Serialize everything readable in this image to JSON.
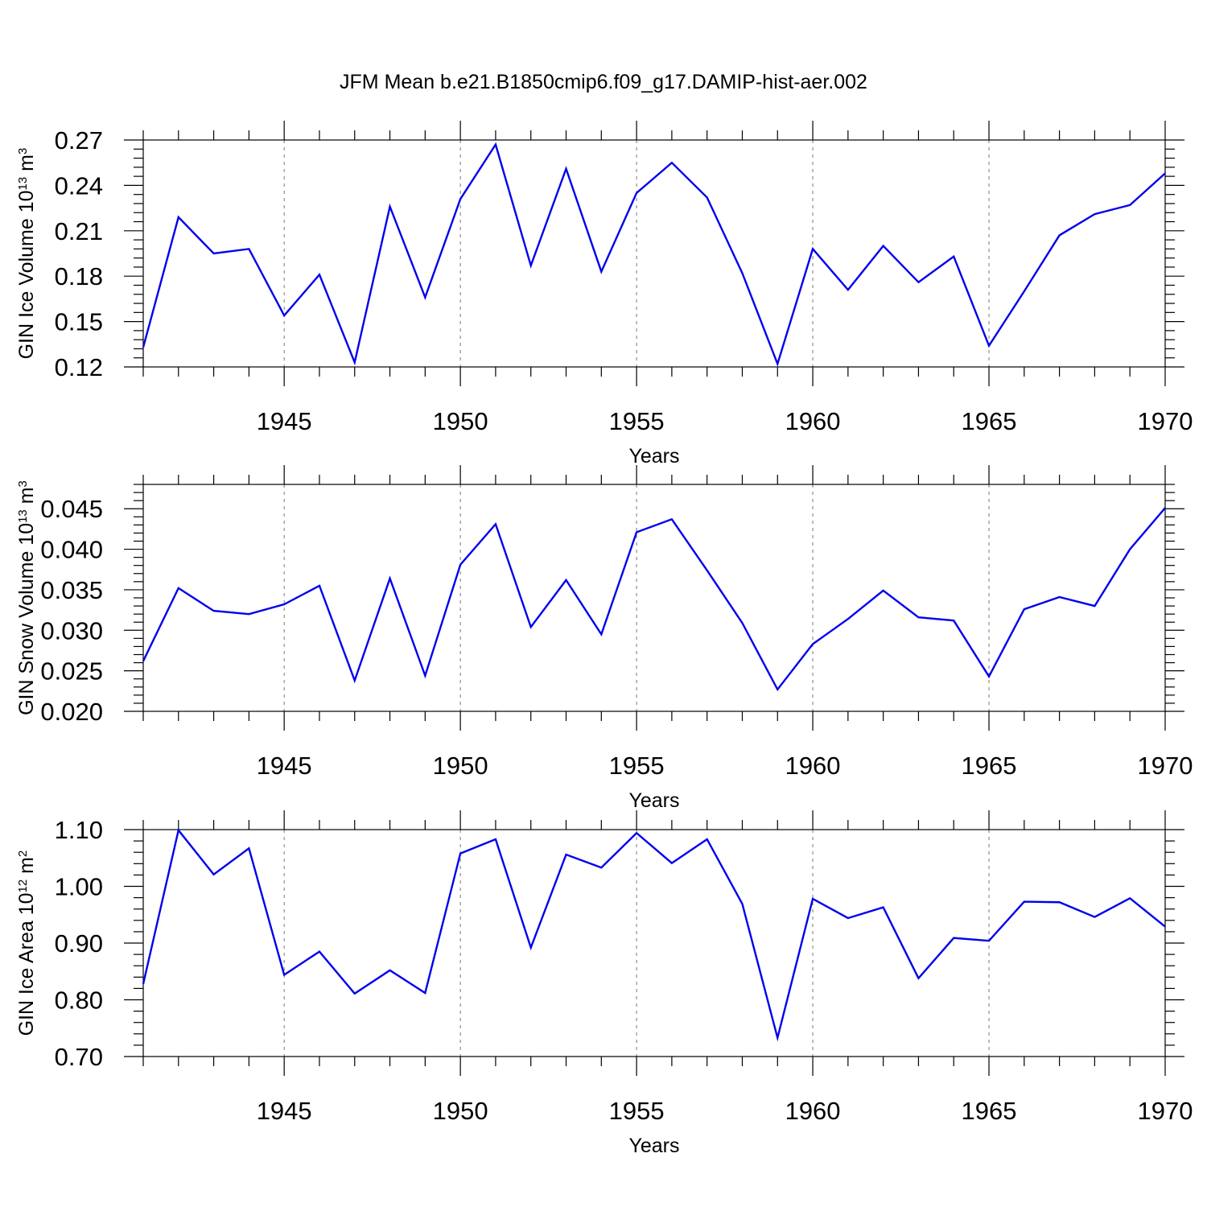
{
  "figure": {
    "title": "JFM Mean b.e21.B1850cmip6.f09_g17.DAMIP-hist-aer.002"
  },
  "chart_data": [
    {
      "type": "line",
      "ylabel": "GIN Ice Volume 10",
      "ylabel_exp": "13",
      "ylabel_unit": " m",
      "ylabel_unit_exp": "3",
      "xlabel": "Years",
      "xlim": [
        1941,
        1970
      ],
      "ylim": [
        0.12,
        0.27
      ],
      "yticks": [
        0.12,
        0.15,
        0.18,
        0.21,
        0.24,
        0.27
      ],
      "ytick_labels": [
        "0.12",
        "0.15",
        "0.18",
        "0.21",
        "0.24",
        "0.27"
      ],
      "xticks": [
        1945,
        1950,
        1955,
        1960,
        1965,
        1970
      ],
      "xtick_labels": [
        "1945",
        "1950",
        "1955",
        "1960",
        "1965",
        "1970"
      ],
      "grid": "vertical dashed at major x ticks",
      "color": "#0000ee",
      "x": [
        1941,
        1942,
        1943,
        1944,
        1945,
        1946,
        1947,
        1948,
        1949,
        1950,
        1951,
        1952,
        1953,
        1954,
        1955,
        1956,
        1957,
        1958,
        1959,
        1960,
        1961,
        1962,
        1963,
        1964,
        1965,
        1966,
        1967,
        1968,
        1969,
        1970
      ],
      "values": [
        0.133,
        0.219,
        0.195,
        0.198,
        0.154,
        0.181,
        0.123,
        0.226,
        0.166,
        0.231,
        0.267,
        0.187,
        0.251,
        0.183,
        0.235,
        0.255,
        0.232,
        0.182,
        0.122,
        0.198,
        0.171,
        0.2,
        0.176,
        0.193,
        0.134,
        0.17,
        0.207,
        0.221,
        0.227,
        0.248
      ]
    },
    {
      "type": "line",
      "ylabel": "GIN Snow Volume 10",
      "ylabel_exp": "13",
      "ylabel_unit": " m",
      "ylabel_unit_exp": "3",
      "xlabel": "Years",
      "xlim": [
        1941,
        1970
      ],
      "ylim": [
        0.02,
        0.048
      ],
      "yticks": [
        0.02,
        0.025,
        0.03,
        0.035,
        0.04,
        0.045
      ],
      "ytick_labels": [
        "0.020",
        "0.025",
        "0.030",
        "0.035",
        "0.040",
        "0.045"
      ],
      "xticks": [
        1945,
        1950,
        1955,
        1960,
        1965,
        1970
      ],
      "xtick_labels": [
        "1945",
        "1950",
        "1955",
        "1960",
        "1965",
        "1970"
      ],
      "grid": "vertical dashed at major x ticks",
      "color": "#0000ee",
      "x": [
        1941,
        1942,
        1943,
        1944,
        1945,
        1946,
        1947,
        1948,
        1949,
        1950,
        1951,
        1952,
        1953,
        1954,
        1955,
        1956,
        1957,
        1958,
        1959,
        1960,
        1961,
        1962,
        1963,
        1964,
        1965,
        1966,
        1967,
        1968,
        1969,
        1970
      ],
      "values": [
        0.0262,
        0.0352,
        0.0324,
        0.032,
        0.0332,
        0.0355,
        0.0238,
        0.0364,
        0.0244,
        0.0381,
        0.0431,
        0.0304,
        0.0362,
        0.0295,
        0.0421,
        0.0437,
        0.0374,
        0.0309,
        0.0227,
        0.0283,
        0.0314,
        0.0349,
        0.0316,
        0.0312,
        0.0243,
        0.0326,
        0.0341,
        0.033,
        0.04,
        0.0451
      ]
    },
    {
      "type": "line",
      "ylabel": "GIN Ice Area 10",
      "ylabel_exp": "12",
      "ylabel_unit": " m",
      "ylabel_unit_exp": "2",
      "xlabel": "Years",
      "xlim": [
        1941,
        1970
      ],
      "ylim": [
        0.7,
        1.1
      ],
      "yticks": [
        0.7,
        0.8,
        0.9,
        1.0,
        1.1
      ],
      "ytick_labels": [
        "0.70",
        "0.80",
        "0.90",
        "1.00",
        "1.10"
      ],
      "xticks": [
        1945,
        1950,
        1955,
        1960,
        1965,
        1970
      ],
      "xtick_labels": [
        "1945",
        "1950",
        "1955",
        "1960",
        "1965",
        "1970"
      ],
      "grid": "vertical dashed at major x ticks",
      "color": "#0000ee",
      "x": [
        1941,
        1942,
        1943,
        1944,
        1945,
        1946,
        1947,
        1948,
        1949,
        1950,
        1951,
        1952,
        1953,
        1954,
        1955,
        1956,
        1957,
        1958,
        1959,
        1960,
        1961,
        1962,
        1963,
        1964,
        1965,
        1966,
        1967,
        1968,
        1969,
        1970
      ],
      "values": [
        0.828,
        1.099,
        1.021,
        1.067,
        0.844,
        0.885,
        0.811,
        0.852,
        0.812,
        1.058,
        1.083,
        0.892,
        1.056,
        1.033,
        1.094,
        1.041,
        1.083,
        0.969,
        0.733,
        0.978,
        0.944,
        0.963,
        0.838,
        0.909,
        0.904,
        0.973,
        0.972,
        0.946,
        0.979,
        0.929
      ]
    }
  ]
}
